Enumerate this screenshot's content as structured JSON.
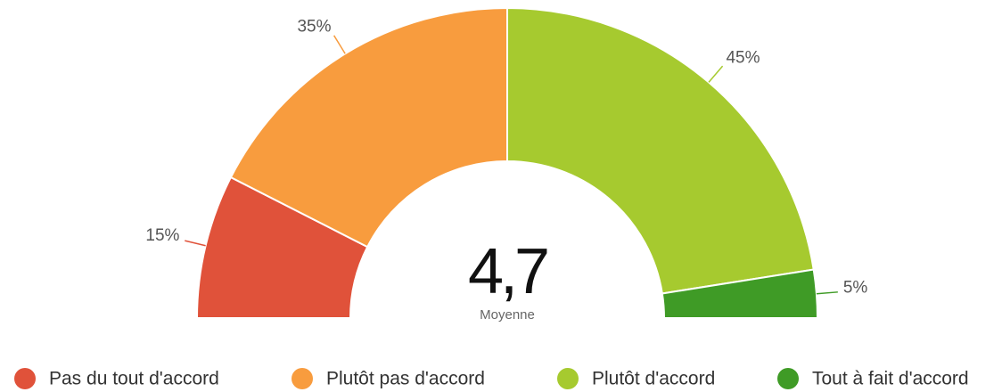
{
  "chart_data": {
    "type": "semi-donut",
    "categories": [
      "Pas du tout d'accord",
      "Plutôt pas d'accord",
      "Plutôt d'accord",
      "Tout à fait d'accord"
    ],
    "values": [
      15,
      35,
      45,
      5
    ],
    "value_labels": [
      "15%",
      "35%",
      "45%",
      "5%"
    ],
    "colors": [
      "#e0523a",
      "#f89c3e",
      "#a6ca2f",
      "#3f9b26"
    ],
    "center_value": "4,7",
    "center_label": "Moyenne"
  }
}
